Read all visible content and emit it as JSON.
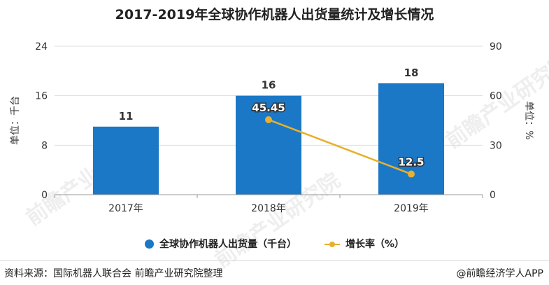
{
  "chart_data": {
    "type": "bar",
    "title": "2017-2019年全球协作机器人出货量统计及增长情况",
    "categories": [
      "2017年",
      "2018年",
      "2019年"
    ],
    "series": [
      {
        "name": "全球协作机器人出货量（千台）",
        "type": "bar",
        "axis": "left",
        "values": [
          11,
          16,
          18
        ],
        "labels": [
          "11",
          "16",
          "18"
        ]
      },
      {
        "name": "增长率（%）",
        "type": "line",
        "axis": "right",
        "values": [
          null,
          45.45,
          12.5
        ],
        "labels": [
          "",
          "45.45",
          "12.5"
        ]
      }
    ],
    "y_left": {
      "label": "单位：千台",
      "min": 0,
      "max": 24,
      "ticks": [
        "0",
        "8",
        "16",
        "24"
      ]
    },
    "y_right": {
      "label": "单位：%",
      "min": 0,
      "max": 90,
      "ticks": [
        "0",
        "30",
        "60",
        "90"
      ]
    },
    "grid": true,
    "legend_position": "bottom"
  },
  "colors": {
    "bar": "#1a78c6",
    "line": "#e7b02e",
    "grid": "#dddddd"
  },
  "watermark": {
    "text": "前瞻产业研究院"
  },
  "footer": {
    "source": "资料来源：国际机器人联合会 前瞻产业研究院整理",
    "credit": "@前瞻经济学人APP"
  }
}
